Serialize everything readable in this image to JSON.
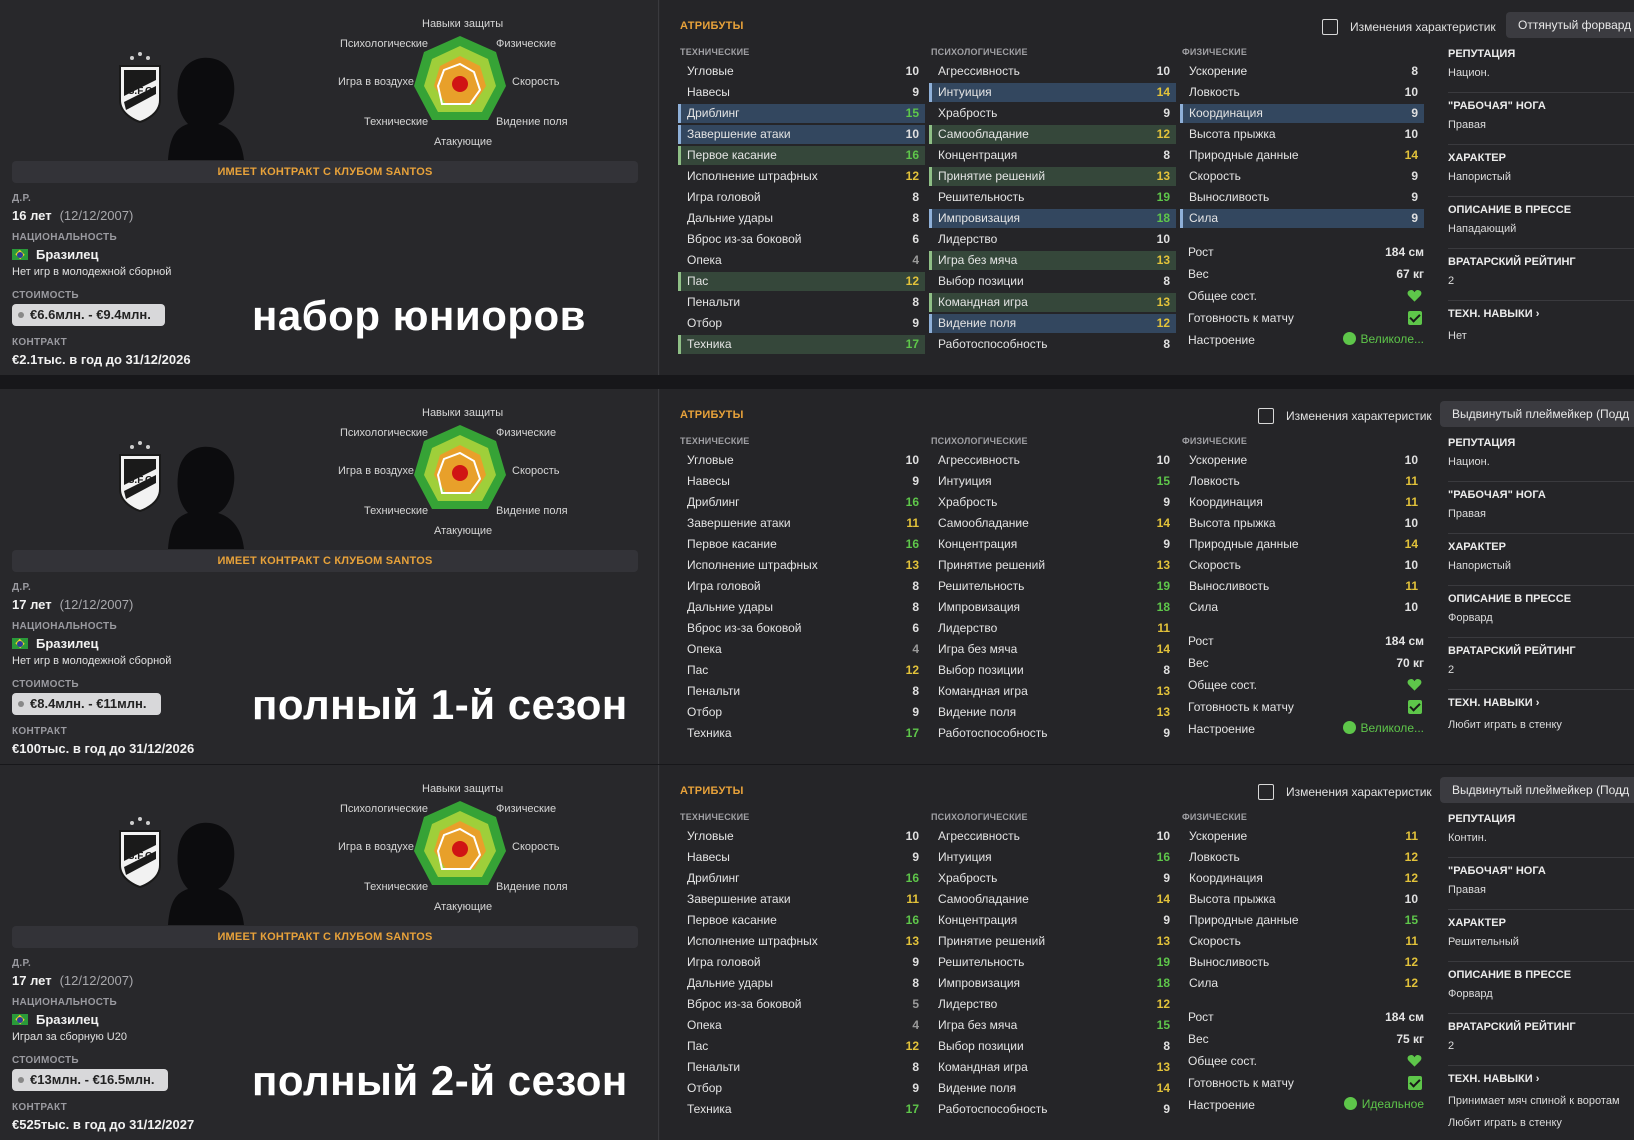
{
  "colors": {
    "accent": "#e8a23a",
    "green": "#5ec64a",
    "blue_highlight": "#33475f",
    "green_highlight": "#35473a"
  },
  "radar_labels": {
    "top": "Навыки защиты",
    "left_top": "Психологические",
    "right_top": "Физические",
    "left_mid": "Игра в воздухе",
    "right_mid": "Скорость",
    "left_bot": "Технические",
    "right_bot": "Видение поля",
    "bottom": "Атакующие"
  },
  "labels": {
    "dob": "Д.Р.",
    "nationality": "НАЦИОНАЛЬНОСТЬ",
    "value": "СТОИМОСТЬ",
    "contract": "КОНТРАКТ",
    "attributes": "АТРИБУТЫ",
    "changes": "Изменения характеристик",
    "technical": "ТЕХНИЧЕСКИЕ",
    "mental": "ПСИХОЛОГИЧЕСКИЕ",
    "physical": "ФИЗИЧЕСКИЕ",
    "height": "Рост",
    "weight": "Вес",
    "condition": "Общее сост.",
    "match_fitness": "Готовность к матчу",
    "morale": "Настроение",
    "reputation": "РЕПУТАЦИЯ",
    "foot": "\"РАБОЧАЯ\" НОГА",
    "personality": "ХАРАКТЕР",
    "media": "ОПИСАНИЕ В ПРЕССЕ",
    "gk_rating": "ВРАТАРСКИЙ РЕЙТИНГ",
    "traits": "ТЕХН. НАВЫКИ ›"
  },
  "technical_names": [
    "Угловые",
    "Навесы",
    "Дриблинг",
    "Завершение атаки",
    "Первое касание",
    "Исполнение штрафных",
    "Игра головой",
    "Дальние удары",
    "Вброс из-за боковой",
    "Опека",
    "Пас",
    "Пенальти",
    "Отбор",
    "Техника"
  ],
  "mental_names": [
    "Агрессивность",
    "Интуиция",
    "Храбрость",
    "Самообладание",
    "Концентрация",
    "Принятие решений",
    "Решительность",
    "Импровизация",
    "Лидерство",
    "Игра без мяча",
    "Выбор позиции",
    "Командная игра",
    "Видение поля",
    "Работоспособность"
  ],
  "physical_names": [
    "Ускорение",
    "Ловкость",
    "Координация",
    "Высота прыжка",
    "Природные данные",
    "Скорость",
    "Выносливость",
    "Сила"
  ],
  "panels": [
    {
      "contract_club": "ИМЕЕТ КОНТРАКТ С КЛУБОМ SANTOS",
      "age": "16 лет",
      "dob": "(12/12/2007)",
      "nation": "Бразилец",
      "youth": "Нет игр в молодежной сборной",
      "value": "€6.6млн. - €9.4млн.",
      "contract": "€2.1тыс. в год до 31/12/2026",
      "overlay": "набор юниоров",
      "role": "Оттянутый форвард (",
      "technical": [
        10,
        9,
        15,
        10,
        16,
        12,
        8,
        8,
        6,
        4,
        12,
        8,
        9,
        17
      ],
      "mental": [
        10,
        14,
        9,
        12,
        8,
        13,
        19,
        18,
        10,
        13,
        8,
        13,
        12,
        8
      ],
      "physical": [
        8,
        10,
        9,
        10,
        14,
        9,
        9,
        9
      ],
      "height": "184 см",
      "weight": "67 кг",
      "morale_text": "Великоле...",
      "reputation": "Национ.",
      "foot": "Правая",
      "personality": "Напористый",
      "media": "Нападающий",
      "gk_rating": "2",
      "traits": [
        "Нет"
      ]
    },
    {
      "contract_club": "ИМЕЕТ КОНТРАКТ С КЛУБОМ SANTOS",
      "age": "17 лет",
      "dob": "(12/12/2007)",
      "nation": "Бразилец",
      "youth": "Нет игр в молодежной сборной",
      "value": "€8.4млн. - €11млн.",
      "contract": "€100тыс. в год до 31/12/2026",
      "overlay": "полный 1-й сезон",
      "role": "Выдвинутый плеймейкер (Подд",
      "technical": [
        10,
        9,
        16,
        11,
        16,
        13,
        8,
        8,
        6,
        4,
        12,
        8,
        9,
        17
      ],
      "mental": [
        10,
        15,
        9,
        14,
        9,
        13,
        19,
        18,
        11,
        14,
        8,
        13,
        13,
        9
      ],
      "physical": [
        10,
        11,
        11,
        10,
        14,
        10,
        11,
        10
      ],
      "height": "184 см",
      "weight": "70 кг",
      "morale_text": "Великоле...",
      "reputation": "Национ.",
      "foot": "Правая",
      "personality": "Напористый",
      "media": "Форвард",
      "gk_rating": "2",
      "traits": [
        "Любит играть в стенку"
      ]
    },
    {
      "contract_club": "ИМЕЕТ КОНТРАКТ С КЛУБОМ SANTOS",
      "age": "17 лет",
      "dob": "(12/12/2007)",
      "nation": "Бразилец",
      "youth": "Играл за сборную U20",
      "value": "€13млн. - €16.5млн.",
      "contract": "€525тыс. в год до 31/12/2027",
      "overlay": "полный 2-й сезон",
      "role": "Выдвинутый плеймейкер (Подд",
      "technical": [
        10,
        9,
        16,
        11,
        16,
        13,
        9,
        8,
        5,
        4,
        12,
        8,
        9,
        17
      ],
      "mental": [
        10,
        16,
        9,
        14,
        9,
        13,
        19,
        18,
        12,
        15,
        8,
        13,
        14,
        9
      ],
      "physical": [
        11,
        12,
        12,
        10,
        15,
        11,
        12,
        12
      ],
      "height": "184 см",
      "weight": "75 кг",
      "morale_text": "Идеальное",
      "reputation": "Контин.",
      "foot": "Правая",
      "personality": "Решительный",
      "media": "Форвард",
      "gk_rating": "2",
      "traits": [
        "Принимает мяч спиной к воротам",
        "Любит играть в стенку"
      ]
    }
  ]
}
